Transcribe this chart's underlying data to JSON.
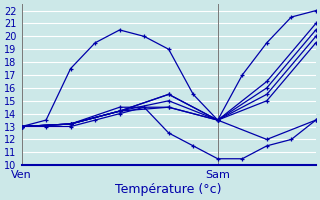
{
  "xlabel": "Température (°c)",
  "bg_color": "#cce8e8",
  "grid_color": "#ffffff",
  "line_color": "#0000aa",
  "ylim": [
    10,
    22.5
  ],
  "yticks": [
    10,
    11,
    12,
    13,
    14,
    15,
    16,
    17,
    18,
    19,
    20,
    21,
    22
  ],
  "xtick_labels": [
    "Ven",
    "Sam"
  ],
  "xtick_positions": [
    0,
    24
  ],
  "xlim": [
    0,
    36
  ],
  "lines": [
    {
      "x": [
        0,
        3,
        6,
        9,
        12,
        15,
        18,
        21,
        24,
        27,
        30,
        33,
        36
      ],
      "y": [
        13.0,
        13.5,
        17.5,
        19.5,
        20.5,
        20.0,
        19.0,
        15.5,
        13.5,
        17.0,
        19.5,
        21.5,
        22.0
      ]
    },
    {
      "x": [
        0,
        6,
        12,
        18,
        24,
        30,
        36
      ],
      "y": [
        13.0,
        13.2,
        14.2,
        15.5,
        13.5,
        16.5,
        21.0
      ]
    },
    {
      "x": [
        0,
        6,
        12,
        18,
        24,
        30,
        36
      ],
      "y": [
        13.0,
        13.2,
        14.2,
        15.0,
        13.5,
        16.0,
        20.5
      ]
    },
    {
      "x": [
        0,
        6,
        12,
        18,
        24,
        30,
        36
      ],
      "y": [
        13.0,
        13.2,
        14.2,
        15.5,
        13.5,
        15.5,
        20.0
      ]
    },
    {
      "x": [
        0,
        6,
        12,
        18,
        24,
        30,
        36
      ],
      "y": [
        13.0,
        13.2,
        14.2,
        14.5,
        13.5,
        15.0,
        19.5
      ]
    },
    {
      "x": [
        0,
        6,
        12,
        18,
        24,
        30,
        36
      ],
      "y": [
        13.0,
        13.2,
        14.5,
        14.5,
        13.5,
        12.0,
        13.5
      ]
    },
    {
      "x": [
        0,
        3,
        6,
        9,
        12,
        15,
        18,
        21,
        24,
        27,
        30,
        33,
        36
      ],
      "y": [
        13.0,
        13.0,
        13.0,
        13.5,
        14.0,
        14.5,
        12.5,
        11.5,
        10.5,
        10.5,
        11.5,
        12.0,
        13.5
      ]
    }
  ]
}
